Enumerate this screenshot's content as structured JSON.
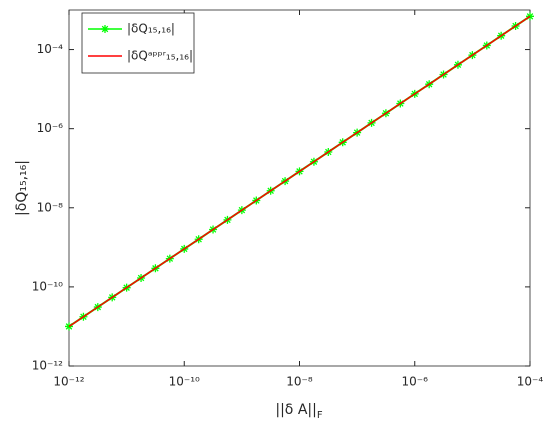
{
  "chart_data": {
    "type": "line",
    "xlabel": {
      "text": "||δ A||",
      "subscript": "F"
    },
    "ylabel": "|δQ₁₅,₁₆|",
    "x": [
      1e-12,
      1.78e-12,
      3.16e-12,
      5.62e-12,
      1e-11,
      1.78e-11,
      3.16e-11,
      5.62e-11,
      1e-10,
      1.78e-10,
      3.16e-10,
      5.62e-10,
      1e-09,
      1.78e-09,
      3.16e-09,
      5.62e-09,
      1e-08,
      1.78e-08,
      3.16e-08,
      5.62e-08,
      1e-07,
      1.78e-07,
      3.16e-07,
      5.62e-07,
      1e-06,
      1.78e-06,
      3.16e-06,
      5.62e-06,
      1e-05,
      1.78e-05,
      3.16e-05,
      5.62e-05,
      0.0001
    ],
    "series": [
      {
        "name": "|δQ₁₅,₁₆|",
        "color": "#00ff00",
        "marker": "*",
        "values": [
          1e-11,
          1.76e-11,
          3.09e-11,
          5.43e-11,
          9.55e-11,
          1.68e-10,
          2.95e-10,
          5.19e-10,
          9.12e-10,
          1.6e-09,
          2.82e-09,
          4.95e-09,
          8.71e-09,
          1.53e-08,
          2.69e-08,
          4.73e-08,
          8.32e-08,
          1.46e-07,
          2.57e-07,
          4.52e-07,
          7.94e-07,
          1.4e-06,
          2.45e-06,
          4.32e-06,
          7.59e-06,
          1.33e-05,
          2.34e-05,
          4.12e-05,
          7.24e-05,
          0.000127,
          0.000224,
          0.000394,
          0.000692
        ]
      },
      {
        "name": "|δQᵃᵖᵖʳ₁₅,₁₆|",
        "color": "#ff0000",
        "values": [
          1e-11,
          1.76e-11,
          3.09e-11,
          5.43e-11,
          9.55e-11,
          1.68e-10,
          2.95e-10,
          5.19e-10,
          9.12e-10,
          1.6e-09,
          2.82e-09,
          4.95e-09,
          8.71e-09,
          1.53e-08,
          2.69e-08,
          4.73e-08,
          8.32e-08,
          1.46e-07,
          2.57e-07,
          4.52e-07,
          7.94e-07,
          1.4e-06,
          2.45e-06,
          4.32e-06,
          7.59e-06,
          1.33e-05,
          2.34e-05,
          4.12e-05,
          7.24e-05,
          0.000127,
          0.000224,
          0.000394,
          0.000692
        ]
      }
    ],
    "xscale": "log",
    "yscale": "log",
    "xlim": [
      1e-12,
      0.0001
    ],
    "xticks": [
      {
        "value": 1e-12,
        "label": "10⁻¹²"
      },
      {
        "value": 1e-10,
        "label": "10⁻¹⁰"
      },
      {
        "value": 1e-08,
        "label": "10⁻⁸"
      },
      {
        "value": 1e-06,
        "label": "10⁻⁶"
      },
      {
        "value": 0.0001,
        "label": "10⁻⁴"
      }
    ],
    "ylim": [
      1e-12,
      0.001
    ],
    "yticks": [
      {
        "value": 1e-12,
        "label": "10⁻¹²"
      },
      {
        "value": 1e-10,
        "label": "10⁻¹⁰"
      },
      {
        "value": 1e-08,
        "label": "10⁻⁸"
      },
      {
        "value": 1e-06,
        "label": "10⁻⁶"
      },
      {
        "value": 0.0001,
        "label": "10⁻⁴"
      }
    ],
    "grid": false,
    "legend": "top-left"
  }
}
